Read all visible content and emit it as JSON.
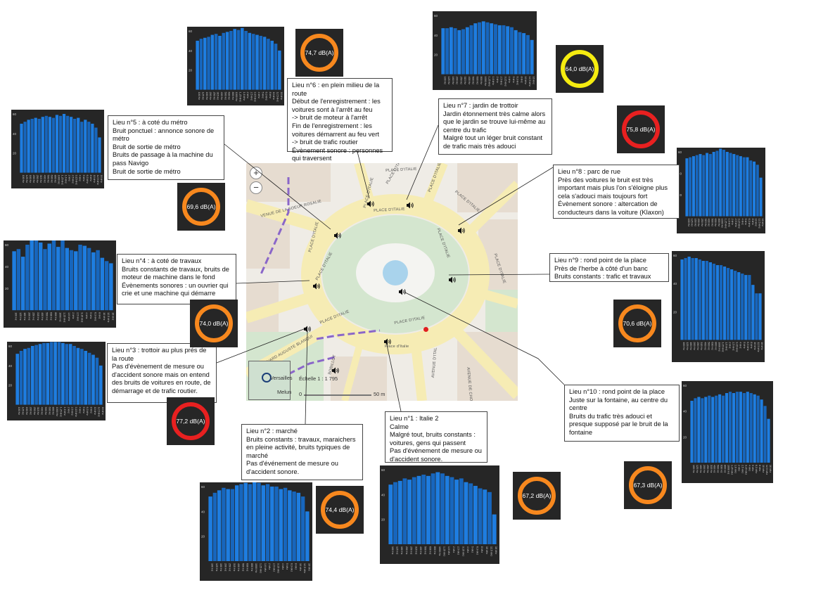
{
  "map": {
    "zoom_in": "+",
    "zoom_out": "−",
    "scale_label": "Échelle 1 : 1 795",
    "scale_zero": "0",
    "scale_distance": "50 m",
    "road_labels": [
      "PLACE D'ITALIE",
      "PLACE D'ITALIE",
      "PLACE D'ITALIE",
      "PLACE D'ITALIE",
      "PLACE D'ITALIE",
      "PLACE D'ITALIE",
      "PLACE D'ITALIE",
      "PLACE D'ITALIE",
      "PLACE D'ITALIE",
      "PLACE D'ITALIE",
      "PLACE D'ITALIE",
      "PLACE D'ITALIE",
      "VENUE DE LA SOEUR ROSALIE",
      "LEVARD AUGUSTE BLANQUI",
      "AVENUE D'ITAL",
      "AVENUE DE CHOISY",
      "Place d'Italie",
      "BOBILLOT"
    ],
    "minimap_labels": [
      "Versailles",
      "Melun"
    ],
    "colors": {
      "road": "#f6ecb4",
      "park": "#d4e6cf",
      "water": "#a9d3ec",
      "building": "#e6dcd0",
      "route": "#8a66c9",
      "marker": "#e02020"
    }
  },
  "spectrum": {
    "bands": [
      "100 Hz",
      "125 Hz",
      "160 Hz",
      "200 Hz",
      "250 Hz",
      "315 Hz",
      "400 Hz",
      "500 Hz",
      "630 Hz",
      "800 Hz",
      "1000 Hz",
      "1,25 kHz",
      "1,6 kHz",
      "2 kHz",
      "2,5 kHz",
      "3,15 kHz",
      "4 kHz",
      "5 kHz",
      "6,3 kHz",
      "8 kHz",
      "10 kHz",
      "12,5 kHz",
      "16 kHz"
    ],
    "y_max": 60,
    "y_ticks": [
      "60",
      "40",
      "20"
    ],
    "bar_colors": [
      "#1e7de0",
      "#1766bd"
    ]
  },
  "locations": [
    {
      "id": 1,
      "note": "Lieu n°1 : Italie 2\nCalme\nMalgré tout, bruits constants : voitures, gens qui passent\nPas d'événement de mesure ou d'accident sonore.",
      "level": "67,2 dB(A)",
      "ring_color": "#f7881e",
      "spectrum": [
        48,
        50,
        51,
        53,
        52,
        54,
        55,
        56,
        55,
        57,
        58,
        57,
        55,
        54,
        52,
        53,
        50,
        49,
        47,
        45,
        44,
        42,
        24
      ]
    },
    {
      "id": 2,
      "note": "Lieu n°2 : marché\nBruits constants : travaux, maraichers en pleine activité, bruits typiques de marché\nPas d'événement de mesure ou d'accident sonore.",
      "level": "74,4 dB(A)",
      "ring_color": "#f7881e",
      "spectrum": [
        52,
        55,
        57,
        59,
        58,
        58,
        61,
        62,
        63,
        62,
        64,
        63,
        61,
        62,
        60,
        60,
        58,
        59,
        57,
        56,
        55,
        52,
        40
      ]
    },
    {
      "id": 3,
      "note": "Lieu n°3 : trottoir au plus prés de la route\nPas d'évènement de mesure ou d'accident sonore mais on entend des bruits de voitures en route, de démarrage et de trafic routier.",
      "level": "77,2 dB(A)",
      "ring_color": "#e82020",
      "spectrum": [
        52,
        55,
        57,
        58,
        60,
        61,
        62,
        63,
        63,
        64,
        64,
        64,
        63,
        62,
        62,
        60,
        58,
        57,
        55,
        53,
        51,
        48,
        40
      ]
    },
    {
      "id": 4,
      "note": "Lieu n°4 : à coté de travaux\nBruits constants de travaux, bruits de moteur de machine dans le fond\nÉvènements sonores : un ouvrier qui crie et une machine qui démarre",
      "level": "74,0 dB(A)",
      "ring_color": "#f7881e",
      "spectrum": [
        54,
        56,
        49,
        60,
        68,
        64,
        62,
        56,
        61,
        64,
        58,
        65,
        57,
        55,
        54,
        60,
        59,
        57,
        53,
        55,
        48,
        45,
        43
      ]
    },
    {
      "id": 5,
      "note": "Lieu n°5 : à coté du métro\nBruit ponctuel : annonce sonore de métro\nBruit de sortie de métro\nBruits de passage à la machine du pass Navigo\nBruit de sortie de métro",
      "level": "69,6 dB(A)",
      "ring_color": "#f7881e",
      "spectrum": [
        50,
        52,
        54,
        55,
        56,
        55,
        57,
        58,
        57,
        56,
        59,
        58,
        60,
        58,
        57,
        55,
        56,
        52,
        54,
        52,
        50,
        46,
        36
      ]
    },
    {
      "id": 6,
      "note": "Lieu n°6 : en plein milieu de la route\nDébut de l'enregistrement : les voitures sont à l'arrêt au feu\n-> bruit de moteur à l'arrêt\nFin de l'enregistrement : les voitures démarrent au feu vert\n-> bruit de trafic routier\nÉvènement sonore : personnes qui traversent",
      "level": "74,7 dB(A)",
      "ring_color": "#f7881e",
      "spectrum": [
        50,
        52,
        53,
        54,
        56,
        57,
        55,
        58,
        59,
        60,
        62,
        61,
        63,
        60,
        58,
        57,
        56,
        55,
        54,
        52,
        50,
        47,
        40
      ]
    },
    {
      "id": 7,
      "note": "Lieu n°7 : jardin de trottoir\nJardin étonnement très calme alors que le jardin se trouve lui-même au centre du trafic\nMalgré tout un léger bruit constant de trafic mais très adouci",
      "level": "64,0 dB(A)",
      "ring_color": "#f5ec10",
      "spectrum": [
        47,
        47,
        48,
        47,
        45,
        46,
        48,
        50,
        52,
        53,
        54,
        53,
        52,
        51,
        50,
        50,
        49,
        48,
        45,
        43,
        42,
        40,
        35
      ]
    },
    {
      "id": 8,
      "note": "Lieu n°8 : parc de rue\nPrès des voitures le bruit est très important mais plus l'on s'éloigne plus cela s'adouci mais toujours fort\nÉvènement sonore : altercation de conducteurs dans la voiture (Klaxon)",
      "level": "75,8 dB(A)",
      "ring_color": "#e82020",
      "spectrum": [
        54,
        55,
        56,
        57,
        58,
        57,
        59,
        58,
        60,
        61,
        63,
        62,
        60,
        59,
        58,
        57,
        56,
        55,
        55,
        52,
        51,
        48,
        36
      ]
    },
    {
      "id": 9,
      "note": "Lieu n°9 : rond point de la place\nPrès de l'herbe à côté d'un banc\nBruits constants : trafic et travaux",
      "level": "70,6 dB(A)",
      "ring_color": "#f7881e",
      "spectrum": [
        57,
        58,
        59,
        58,
        58,
        57,
        56,
        56,
        55,
        54,
        53,
        53,
        52,
        51,
        50,
        49,
        48,
        47,
        46,
        46,
        39,
        33,
        33
      ]
    },
    {
      "id": 10,
      "note": "Lieu n°10 : rond point de la place\nJuste sur la fontaine, au centre du centre\nBruits du trafic très adouci et presque supposé par le bruit de la fontaine",
      "level": "67,3 dB(A)",
      "ring_color": "#f7881e",
      "spectrum": [
        48,
        50,
        51,
        50,
        51,
        52,
        51,
        52,
        53,
        52,
        54,
        55,
        54,
        55,
        55,
        54,
        55,
        54,
        53,
        52,
        49,
        44,
        34
      ]
    }
  ]
}
